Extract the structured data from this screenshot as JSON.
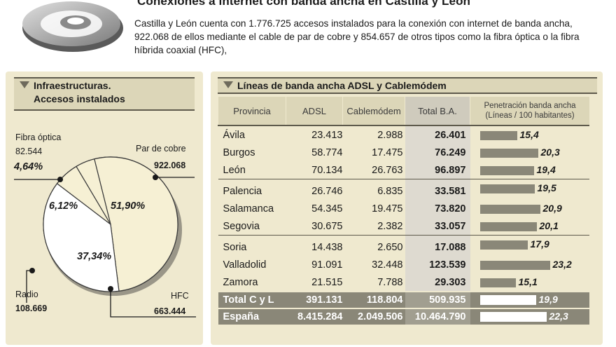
{
  "header": {
    "title": "Conexiones a internet con banda ancha en Castilla y León",
    "intro": "Castilla y León cuenta con 1.776.725 accesos instalados para la conexión con internet de banda ancha, 922.068 de ellos mediante el cable de par de cobre y 854.657 de  otros tipos como la fibra óptica o la fibra híbrida coaxial (HFC),"
  },
  "colors": {
    "panel": "#efe9cf",
    "header_band": "#dcd6b8",
    "bar": "#8a8778",
    "pie_light": "#f6f0d4",
    "pie_shadow": "#9a9688"
  },
  "left_panel": {
    "title": "Infraestructuras.\nAccesos instalados"
  },
  "right_panel": {
    "title": "Líneas de banda ancha ADSL y Cablemódem"
  },
  "chart_data": [
    {
      "type": "pie",
      "title": "Infraestructuras. Accesos instalados",
      "slices": [
        {
          "name": "Par de cobre",
          "count": "922.068",
          "percent": 51.9,
          "label": "51,90%"
        },
        {
          "name": "HFC",
          "count": "663.444",
          "percent": 37.34,
          "label": "37,34%"
        },
        {
          "name": "Radio",
          "count": "108.669",
          "percent": 6.12,
          "label": "6,12%"
        },
        {
          "name": "Fibra óptica",
          "count": "82.544",
          "percent": 4.64,
          "label": "4,64%"
        }
      ]
    },
    {
      "type": "table",
      "title": "Líneas de banda ancha ADSL y Cablemódem",
      "columns": [
        "Provincia",
        "ADSL",
        "Cablemódem",
        "Total B.A.",
        "Penetración banda ancha (Líneas / 100 habitantes)"
      ],
      "rows": [
        {
          "provincia": "Ávila",
          "adsl": "23.413",
          "cable": "2.988",
          "total": "26.401",
          "pen": 15.4,
          "pen_label": "15,4"
        },
        {
          "provincia": "Burgos",
          "adsl": "58.774",
          "cable": "17.475",
          "total": "76.249",
          "pen": 20.3,
          "pen_label": "20,3"
        },
        {
          "provincia": "León",
          "adsl": "70.134",
          "cable": "26.763",
          "total": "96.897",
          "pen": 19.4,
          "pen_label": "19,4"
        },
        {
          "provincia": "Palencia",
          "adsl": "26.746",
          "cable": "6.835",
          "total": "33.581",
          "pen": 19.5,
          "pen_label": "19,5"
        },
        {
          "provincia": "Salamanca",
          "adsl": "54.345",
          "cable": "19.475",
          "total": "73.820",
          "pen": 20.9,
          "pen_label": "20,9"
        },
        {
          "provincia": "Segovia",
          "adsl": "30.675",
          "cable": "2.382",
          "total": "33.057",
          "pen": 20.1,
          "pen_label": "20,1"
        },
        {
          "provincia": "Soria",
          "adsl": "14.438",
          "cable": "2.650",
          "total": "17.088",
          "pen": 17.9,
          "pen_label": "17,9"
        },
        {
          "provincia": "Valladolid",
          "adsl": "91.091",
          "cable": "32.448",
          "total": "123.539",
          "pen": 23.2,
          "pen_label": "23,2"
        },
        {
          "provincia": "Zamora",
          "adsl": "21.515",
          "cable": "7.788",
          "total": "29.303",
          "pen": 15.1,
          "pen_label": "15,1"
        }
      ],
      "totals": [
        {
          "provincia": "Total C y L",
          "adsl": "391.131",
          "cable": "118.804",
          "total": "509.935",
          "pen": 19.9,
          "pen_label": "19,9"
        },
        {
          "provincia": "España",
          "adsl": "8.415.284",
          "cable": "2.049.506",
          "total": "10.464.790",
          "pen": 22.3,
          "pen_label": "22,3"
        }
      ]
    }
  ]
}
